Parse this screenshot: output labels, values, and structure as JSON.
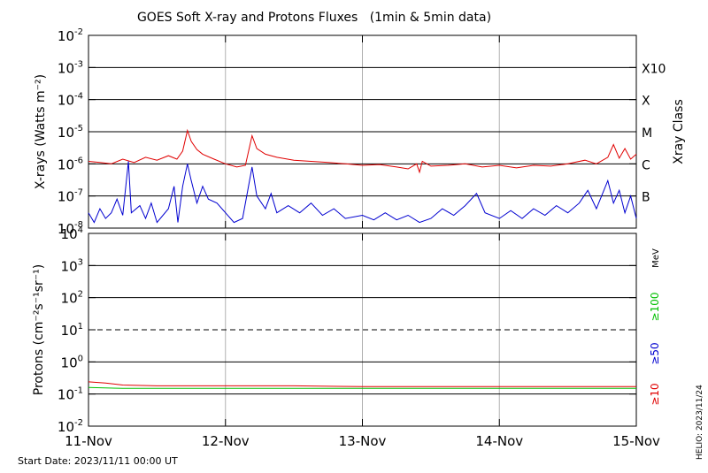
{
  "chart_data": [
    {
      "type": "line",
      "title": "GOES Soft X-ray and Protons Fluxes   (1min & 5min data)",
      "ylabel": "X-rays (Watts m⁻²)",
      "yscale": "log",
      "ylim": [
        1e-08,
        0.01
      ],
      "ytick_exponents": [
        "-2",
        "-3",
        "-4",
        "-5",
        "-6",
        "-7",
        "-8"
      ],
      "ytick_base": "10",
      "xlim": [
        "2023-11-11",
        "2023-11-15"
      ],
      "right_axis_label": "Xray Class",
      "class_labels": [
        {
          "label": "X10",
          "value": 0.001
        },
        {
          "label": "X",
          "value": 0.0001
        },
        {
          "label": "M",
          "value": 1e-05
        },
        {
          "label": "C",
          "value": 1e-06
        },
        {
          "label": "B",
          "value": 1e-07
        }
      ],
      "series": [
        {
          "color": "#e00000",
          "points": [
            [
              "2023-11-11T00:00",
              1.2e-06
            ],
            [
              "2023-11-11T02:00",
              1.1e-06
            ],
            [
              "2023-11-11T04:00",
              1e-06
            ],
            [
              "2023-11-11T06:00",
              1.4e-06
            ],
            [
              "2023-11-11T08:00",
              1.1e-06
            ],
            [
              "2023-11-11T10:00",
              1.6e-06
            ],
            [
              "2023-11-11T12:00",
              1.3e-06
            ],
            [
              "2023-11-11T14:00",
              1.8e-06
            ],
            [
              "2023-11-11T15:30",
              1.4e-06
            ],
            [
              "2023-11-11T16:30",
              2.5e-06
            ],
            [
              "2023-11-11T17:20",
              1.1e-05
            ],
            [
              "2023-11-11T18:00",
              5e-06
            ],
            [
              "2023-11-11T19:00",
              2.8e-06
            ],
            [
              "2023-11-11T20:00",
              2e-06
            ],
            [
              "2023-11-11T22:00",
              1.4e-06
            ],
            [
              "2023-11-12T00:00",
              1e-06
            ],
            [
              "2023-11-12T02:00",
              8e-07
            ],
            [
              "2023-11-12T03:30",
              9e-07
            ],
            [
              "2023-11-12T04:40",
              7.5e-06
            ],
            [
              "2023-11-12T05:30",
              3e-06
            ],
            [
              "2023-11-12T07:00",
              2e-06
            ],
            [
              "2023-11-12T09:00",
              1.6e-06
            ],
            [
              "2023-11-12T12:00",
              1.3e-06
            ],
            [
              "2023-11-12T15:00",
              1.2e-06
            ],
            [
              "2023-11-12T18:00",
              1.1e-06
            ],
            [
              "2023-11-12T21:00",
              1e-06
            ],
            [
              "2023-11-13T00:00",
              9e-07
            ],
            [
              "2023-11-13T03:00",
              9.5e-07
            ],
            [
              "2023-11-13T06:00",
              8e-07
            ],
            [
              "2023-11-13T08:00",
              7e-07
            ],
            [
              "2023-11-13T09:30",
              1e-06
            ],
            [
              "2023-11-13T10:00",
              5.5e-07
            ],
            [
              "2023-11-13T10:30",
              1.2e-06
            ],
            [
              "2023-11-13T12:00",
              8.5e-07
            ],
            [
              "2023-11-13T15:00",
              9e-07
            ],
            [
              "2023-11-13T18:00",
              1e-06
            ],
            [
              "2023-11-13T21:00",
              8e-07
            ],
            [
              "2023-11-14T00:00",
              9e-07
            ],
            [
              "2023-11-14T03:00",
              7.5e-07
            ],
            [
              "2023-11-14T06:00",
              9e-07
            ],
            [
              "2023-11-14T09:00",
              8.5e-07
            ],
            [
              "2023-11-14T12:00",
              1e-06
            ],
            [
              "2023-11-14T15:00",
              1.3e-06
            ],
            [
              "2023-11-14T17:00",
              1e-06
            ],
            [
              "2023-11-14T19:00",
              1.6e-06
            ],
            [
              "2023-11-14T20:00",
              4e-06
            ],
            [
              "2023-11-14T21:00",
              1.5e-06
            ],
            [
              "2023-11-14T22:00",
              3e-06
            ],
            [
              "2023-11-14T23:00",
              1.4e-06
            ],
            [
              "2023-11-15T00:00",
              2e-06
            ]
          ]
        },
        {
          "color": "#0000d0",
          "points": [
            [
              "2023-11-11T00:00",
              3e-08
            ],
            [
              "2023-11-11T01:00",
              1.5e-08
            ],
            [
              "2023-11-11T02:00",
              4e-08
            ],
            [
              "2023-11-11T03:00",
              2e-08
            ],
            [
              "2023-11-11T04:00",
              3e-08
            ],
            [
              "2023-11-11T05:00",
              8e-08
            ],
            [
              "2023-11-11T06:00",
              2.5e-08
            ],
            [
              "2023-11-11T07:00",
              1.2e-06
            ],
            [
              "2023-11-11T07:30",
              3e-08
            ],
            [
              "2023-11-11T09:00",
              5e-08
            ],
            [
              "2023-11-11T10:00",
              2e-08
            ],
            [
              "2023-11-11T11:00",
              6e-08
            ],
            [
              "2023-11-11T12:00",
              1.5e-08
            ],
            [
              "2023-11-11T14:00",
              4e-08
            ],
            [
              "2023-11-11T15:00",
              2e-07
            ],
            [
              "2023-11-11T15:40",
              1.5e-08
            ],
            [
              "2023-11-11T16:30",
              2e-07
            ],
            [
              "2023-11-11T17:20",
              1e-06
            ],
            [
              "2023-11-11T18:00",
              3e-07
            ],
            [
              "2023-11-11T19:00",
              6e-08
            ],
            [
              "2023-11-11T20:00",
              2e-07
            ],
            [
              "2023-11-11T21:00",
              8e-08
            ],
            [
              "2023-11-11T22:30",
              6e-08
            ],
            [
              "2023-11-12T00:00",
              3e-08
            ],
            [
              "2023-11-12T01:30",
              1.5e-08
            ],
            [
              "2023-11-12T03:00",
              2e-08
            ],
            [
              "2023-11-12T04:40",
              8e-07
            ],
            [
              "2023-11-12T05:30",
              1e-07
            ],
            [
              "2023-11-12T07:00",
              4e-08
            ],
            [
              "2023-11-12T08:00",
              1.2e-07
            ],
            [
              "2023-11-12T09:00",
              3e-08
            ],
            [
              "2023-11-12T11:00",
              5e-08
            ],
            [
              "2023-11-12T13:00",
              3e-08
            ],
            [
              "2023-11-12T15:00",
              6e-08
            ],
            [
              "2023-11-12T17:00",
              2.5e-08
            ],
            [
              "2023-11-12T19:00",
              4e-08
            ],
            [
              "2023-11-12T21:00",
              2e-08
            ],
            [
              "2023-11-13T00:00",
              2.5e-08
            ],
            [
              "2023-11-13T02:00",
              1.8e-08
            ],
            [
              "2023-11-13T04:00",
              3e-08
            ],
            [
              "2023-11-13T06:00",
              1.8e-08
            ],
            [
              "2023-11-13T08:00",
              2.5e-08
            ],
            [
              "2023-11-13T10:00",
              1.5e-08
            ],
            [
              "2023-11-13T12:00",
              2e-08
            ],
            [
              "2023-11-13T14:00",
              4e-08
            ],
            [
              "2023-11-13T16:00",
              2.5e-08
            ],
            [
              "2023-11-13T18:00",
              5e-08
            ],
            [
              "2023-11-13T20:00",
              1.2e-07
            ],
            [
              "2023-11-13T21:30",
              3e-08
            ],
            [
              "2023-11-14T00:00",
              2e-08
            ],
            [
              "2023-11-14T02:00",
              3.5e-08
            ],
            [
              "2023-11-14T04:00",
              2e-08
            ],
            [
              "2023-11-14T06:00",
              4e-08
            ],
            [
              "2023-11-14T08:00",
              2.5e-08
            ],
            [
              "2023-11-14T10:00",
              5e-08
            ],
            [
              "2023-11-14T12:00",
              3e-08
            ],
            [
              "2023-11-14T14:00",
              6e-08
            ],
            [
              "2023-11-14T15:30",
              1.5e-07
            ],
            [
              "2023-11-14T17:00",
              4e-08
            ],
            [
              "2023-11-14T19:00",
              3e-07
            ],
            [
              "2023-11-14T20:00",
              6e-08
            ],
            [
              "2023-11-14T21:00",
              1.5e-07
            ],
            [
              "2023-11-14T22:00",
              3e-08
            ],
            [
              "2023-11-14T23:00",
              1e-07
            ],
            [
              "2023-11-15T00:00",
              2e-08
            ]
          ]
        }
      ]
    },
    {
      "type": "line",
      "ylabel": "Protons (cm⁻²s⁻¹sr⁻¹)",
      "yscale": "log",
      "ylim": [
        0.01,
        10000
      ],
      "ytick_exponents": [
        "4",
        "3",
        "2",
        "1",
        "0",
        "-1",
        "-2"
      ],
      "ytick_base": "10",
      "xlim": [
        "2023-11-11",
        "2023-11-15"
      ],
      "xtick_labels": [
        "11-Nov",
        "12-Nov",
        "13-Nov",
        "14-Nov",
        "15-Nov"
      ],
      "threshold_line": 10,
      "right_axis_unit": "MeV",
      "series": [
        {
          "name": "≥100",
          "color": "#00c000",
          "points": []
        },
        {
          "name": "≥50",
          "color": "#0000d0",
          "points": []
        },
        {
          "name": "≥10",
          "color": "#e00000",
          "points": [
            [
              "2023-11-11T00:00",
              0.24
            ],
            [
              "2023-11-11T03:00",
              0.22
            ],
            [
              "2023-11-11T06:00",
              0.19
            ],
            [
              "2023-11-11T12:00",
              0.18
            ],
            [
              "2023-11-11T18:00",
              0.18
            ],
            [
              "2023-11-12T00:00",
              0.18
            ],
            [
              "2023-11-12T12:00",
              0.18
            ],
            [
              "2023-11-13T00:00",
              0.17
            ],
            [
              "2023-11-13T12:00",
              0.17
            ],
            [
              "2023-11-14T00:00",
              0.17
            ],
            [
              "2023-11-14T12:00",
              0.17
            ],
            [
              "2023-11-15T00:00",
              0.17
            ]
          ]
        },
        {
          "name": "",
          "color": "#00c000",
          "points": [
            [
              "2023-11-11T00:00",
              0.16
            ],
            [
              "2023-11-11T06:00",
              0.15
            ],
            [
              "2023-11-11T12:00",
              0.15
            ],
            [
              "2023-11-12T00:00",
              0.15
            ],
            [
              "2023-11-12T12:00",
              0.15
            ],
            [
              "2023-11-13T00:00",
              0.15
            ],
            [
              "2023-11-13T12:00",
              0.15
            ],
            [
              "2023-11-14T00:00",
              0.15
            ],
            [
              "2023-11-14T12:00",
              0.15
            ],
            [
              "2023-11-15T00:00",
              0.15
            ]
          ]
        }
      ]
    }
  ],
  "footer": {
    "start_date": "Start Date: 2023/11/11 00:00 UT",
    "credit": "HELIO: 2023/11/24"
  }
}
